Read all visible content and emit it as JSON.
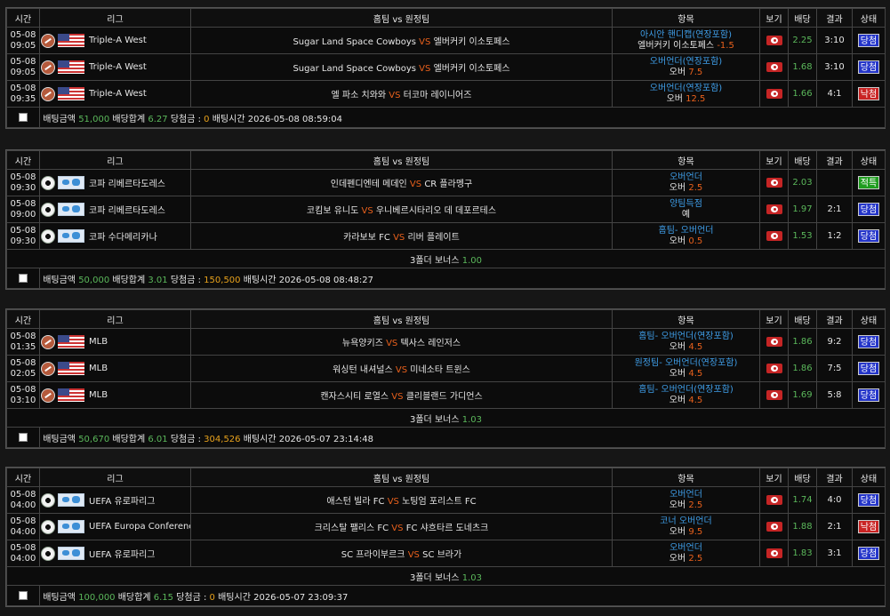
{
  "headers": {
    "time": "시간",
    "league": "리그",
    "match": "홈팀 vs 원정팀",
    "item": "항목",
    "view": "보기",
    "odds": "배당",
    "result": "결과",
    "status": "상태"
  },
  "vs": "VS",
  "footer_labels": {
    "amount": "배팅금액",
    "total_odds": "배당합계",
    "win_amount": "당첨금 :",
    "bet_time": "배팅시간"
  },
  "colors": {
    "win": "#2435c9",
    "lose": "#c92424",
    "hit": "#1f9d1f",
    "vs": "#e8601c",
    "odds": "#5bb85b"
  },
  "slips": [
    {
      "rows": [
        {
          "date": "05-08",
          "time": "09:05",
          "sport": "baseball-icon",
          "flag": "us-flag-icon",
          "league": "Triple-A West",
          "home": "Sugar Land Space Cowboys",
          "away": "엘버커키 이소토페스",
          "item_type": "아시안 핸디캡(연장포함)",
          "item_pick": "엘버커키 이소토페스",
          "item_line": "-1.5",
          "odds": "2.25",
          "result": "3:10",
          "status": "당첨",
          "status_kind": "win"
        },
        {
          "date": "05-08",
          "time": "09:05",
          "sport": "baseball-icon",
          "flag": "us-flag-icon",
          "league": "Triple-A West",
          "home": "Sugar Land Space Cowboys",
          "away": "엘버커키 이소토페스",
          "item_type": "오버언더(연장포함)",
          "item_pick": "오버",
          "item_line": "7.5",
          "odds": "1.68",
          "result": "3:10",
          "status": "당첨",
          "status_kind": "win"
        },
        {
          "date": "05-08",
          "time": "09:35",
          "sport": "baseball-icon",
          "flag": "us-flag-icon",
          "league": "Triple-A West",
          "home": "엘 파소 치와와",
          "away": "터코마 레이니어즈",
          "item_type": "오버언더(연장포함)",
          "item_pick": "오버",
          "item_line": "12.5",
          "odds": "1.66",
          "result": "4:1",
          "status": "낙첨",
          "status_kind": "lose"
        }
      ],
      "bonus": null,
      "footer": {
        "amount": "51,000",
        "total_odds": "6.27",
        "win_amount": "0",
        "bet_time": "2026-05-08 08:59:04"
      }
    },
    {
      "rows": [
        {
          "date": "05-08",
          "time": "09:30",
          "sport": "soccer-icon",
          "flag": "world-flag-icon",
          "league": "코파 리베르타도레스",
          "home": "인데펜디엔테 메데인",
          "away": "CR 플라멩구",
          "item_type": "오버언더",
          "item_pick": "오버",
          "item_line": "2.5",
          "odds": "2.03",
          "result": "",
          "status": "적특",
          "status_kind": "hit"
        },
        {
          "date": "05-08",
          "time": "09:00",
          "sport": "soccer-icon",
          "flag": "world-flag-icon",
          "league": "코파 리베르타도레스",
          "home": "코킴보 유니도",
          "away": "우니베르시타리오 데 데포르테스",
          "item_type": "양팀득점",
          "item_pick": "예",
          "item_line": "",
          "odds": "1.97",
          "result": "2:1",
          "status": "당첨",
          "status_kind": "win"
        },
        {
          "date": "05-08",
          "time": "09:30",
          "sport": "soccer-icon",
          "flag": "world-flag-icon",
          "league": "코파 수다메리카나",
          "home": "카라보보 FC",
          "away": "리버 플레이트",
          "item_type": "홈팀- 오버언더",
          "item_pick": "오버",
          "item_line": "0.5",
          "odds": "1.53",
          "result": "1:2",
          "status": "당첨",
          "status_kind": "win"
        }
      ],
      "bonus": {
        "label": "3폴더 보너스",
        "value": "1.00"
      },
      "footer": {
        "amount": "50,000",
        "total_odds": "3.01",
        "win_amount": "150,500",
        "bet_time": "2026-05-08 08:48:27"
      }
    },
    {
      "rows": [
        {
          "date": "05-08",
          "time": "01:35",
          "sport": "baseball-icon",
          "flag": "us-flag-icon",
          "league": "MLB",
          "home": "뉴욕양키즈",
          "away": "텍사스 레인저스",
          "item_type": "홈팀- 오버언더(연장포함)",
          "item_pick": "오버",
          "item_line": "4.5",
          "odds": "1.86",
          "result": "9:2",
          "status": "당첨",
          "status_kind": "win"
        },
        {
          "date": "05-08",
          "time": "02:05",
          "sport": "baseball-icon",
          "flag": "us-flag-icon",
          "league": "MLB",
          "home": "워싱턴 내셔널스",
          "away": "미네소타 트윈스",
          "item_type": "원정팀- 오버언더(연장포함)",
          "item_pick": "오버",
          "item_line": "4.5",
          "odds": "1.86",
          "result": "7:5",
          "status": "당첨",
          "status_kind": "win"
        },
        {
          "date": "05-08",
          "time": "03:10",
          "sport": "baseball-icon",
          "flag": "us-flag-icon",
          "league": "MLB",
          "home": "캔자스시티 로열스",
          "away": "클리블랜드 가디언스",
          "item_type": "홈팀- 오버언더(연장포함)",
          "item_pick": "오버",
          "item_line": "4.5",
          "odds": "1.69",
          "result": "5:8",
          "status": "당첨",
          "status_kind": "win"
        }
      ],
      "bonus": {
        "label": "3폴더 보너스",
        "value": "1.03"
      },
      "footer": {
        "amount": "50,670",
        "total_odds": "6.01",
        "win_amount": "304,526",
        "bet_time": "2026-05-07 23:14:48"
      }
    },
    {
      "rows": [
        {
          "date": "05-08",
          "time": "04:00",
          "sport": "soccer-icon",
          "flag": "world-flag-icon",
          "league": "UEFA 유로파리그",
          "home": "애스턴 빌라 FC",
          "away": "노팅엄 포리스트 FC",
          "item_type": "오버언더",
          "item_pick": "오버",
          "item_line": "2.5",
          "odds": "1.74",
          "result": "4:0",
          "status": "당첨",
          "status_kind": "win"
        },
        {
          "date": "05-08",
          "time": "04:00",
          "sport": "soccer-icon",
          "flag": "world-flag-icon",
          "league": "UEFA Europa Conference L",
          "home": "크리스탈 팰리스 FC",
          "away": "FC 샤흐타르 도네츠크",
          "item_type": "코너 오버언더",
          "item_pick": "오버",
          "item_line": "9.5",
          "odds": "1.88",
          "result": "2:1",
          "status": "낙첨",
          "status_kind": "lose"
        },
        {
          "date": "05-08",
          "time": "04:00",
          "sport": "soccer-icon",
          "flag": "world-flag-icon",
          "league": "UEFA 유로파리그",
          "home": "SC 프라이부르크",
          "away": "SC 브라가",
          "item_type": "오버언더",
          "item_pick": "오버",
          "item_line": "2.5",
          "odds": "1.83",
          "result": "3:1",
          "status": "당첨",
          "status_kind": "win"
        }
      ],
      "bonus": {
        "label": "3폴더 보너스",
        "value": "1.03"
      },
      "footer": {
        "amount": "100,000",
        "total_odds": "6.15",
        "win_amount": "0",
        "bet_time": "2026-05-07 23:09:37"
      }
    }
  ]
}
